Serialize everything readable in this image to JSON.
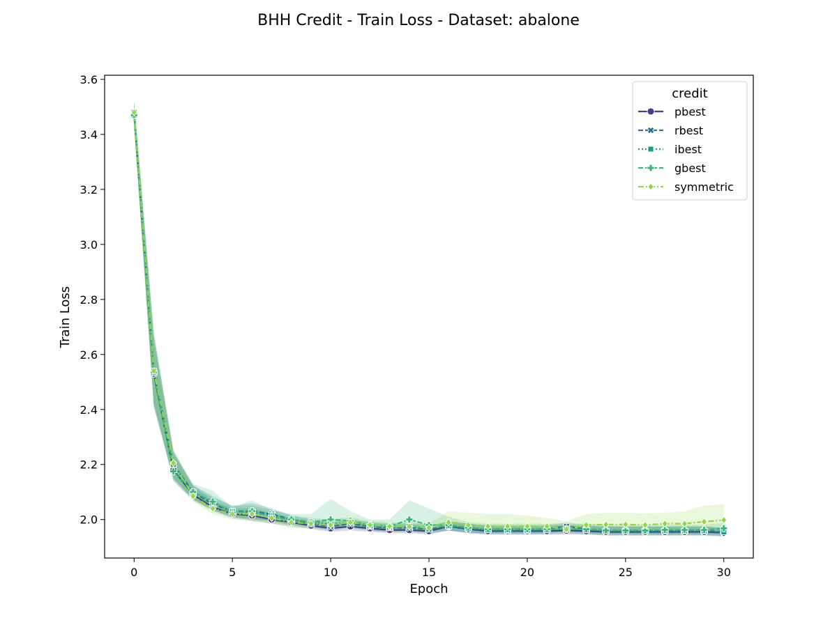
{
  "chart_data": {
    "type": "line",
    "title": "BHH Credit - Train Loss - Dataset: abalone",
    "xlabel": "Epoch",
    "ylabel": "Train Loss",
    "xlim": [
      -1.5,
      31.5
    ],
    "ylim": [
      1.86,
      3.615
    ],
    "xticks": [
      0,
      5,
      10,
      15,
      20,
      25,
      30
    ],
    "yticks": [
      2.0,
      2.2,
      2.4,
      2.6,
      2.8,
      3.0,
      3.2,
      3.4,
      3.6
    ],
    "ytick_labels": [
      "2.0",
      "2.2",
      "2.4",
      "2.6",
      "2.8",
      "3.0",
      "3.2",
      "3.4",
      "3.6"
    ],
    "grid": false,
    "legend": {
      "title": "credit",
      "placement": "top-right"
    },
    "x": [
      0,
      1,
      2,
      3,
      4,
      5,
      6,
      7,
      8,
      9,
      10,
      11,
      12,
      13,
      14,
      15,
      16,
      17,
      18,
      19,
      20,
      21,
      22,
      23,
      24,
      25,
      26,
      27,
      28,
      29,
      30
    ],
    "series": [
      {
        "name": "pbest",
        "color": "#433e85",
        "dash": "solid",
        "marker": "circle",
        "values": [
          3.47,
          2.53,
          2.18,
          2.09,
          2.045,
          2.02,
          2.015,
          2.0,
          1.99,
          1.978,
          1.968,
          1.975,
          1.968,
          1.962,
          1.962,
          1.958,
          1.975,
          1.965,
          1.958,
          1.958,
          1.958,
          1.958,
          1.96,
          1.958,
          1.955,
          1.955,
          1.955,
          1.955,
          1.955,
          1.955,
          1.952
        ],
        "band": [
          [
            3.51,
            3.43
          ],
          [
            2.65,
            2.42
          ],
          [
            2.24,
            2.14
          ],
          [
            2.12,
            2.07
          ],
          [
            2.07,
            2.03
          ],
          [
            2.04,
            2.005
          ],
          [
            2.04,
            1.995
          ],
          [
            2.025,
            1.985
          ],
          [
            2.005,
            1.975
          ],
          [
            1.995,
            1.965
          ],
          [
            1.985,
            1.955
          ],
          [
            1.99,
            1.96
          ],
          [
            1.985,
            1.955
          ],
          [
            1.98,
            1.95
          ],
          [
            1.98,
            1.95
          ],
          [
            1.975,
            1.945
          ],
          [
            1.995,
            1.96
          ],
          [
            1.985,
            1.95
          ],
          [
            1.975,
            1.945
          ],
          [
            1.975,
            1.945
          ],
          [
            1.975,
            1.945
          ],
          [
            1.975,
            1.945
          ],
          [
            1.98,
            1.945
          ],
          [
            1.975,
            1.945
          ],
          [
            1.975,
            1.942
          ],
          [
            1.975,
            1.942
          ],
          [
            1.975,
            1.942
          ],
          [
            1.975,
            1.942
          ],
          [
            1.975,
            1.942
          ],
          [
            1.975,
            1.942
          ],
          [
            1.97,
            1.938
          ]
        ]
      },
      {
        "name": "rbest",
        "color": "#2c728e",
        "dash": "dashed",
        "marker": "x",
        "values": [
          3.48,
          2.535,
          2.2,
          2.1,
          2.055,
          2.03,
          2.03,
          2.02,
          2.0,
          1.985,
          1.975,
          1.985,
          1.975,
          1.97,
          1.97,
          1.965,
          1.975,
          1.968,
          1.965,
          1.965,
          1.965,
          1.965,
          1.975,
          1.965,
          1.96,
          1.96,
          1.96,
          1.96,
          1.96,
          1.96,
          1.955
        ],
        "band": [
          [
            3.52,
            3.44
          ],
          [
            2.67,
            2.41
          ],
          [
            2.25,
            2.15
          ],
          [
            2.125,
            2.075
          ],
          [
            2.08,
            2.035
          ],
          [
            2.05,
            2.01
          ],
          [
            2.06,
            2.0
          ],
          [
            2.04,
            1.995
          ],
          [
            2.015,
            1.98
          ],
          [
            2.0,
            1.97
          ],
          [
            1.99,
            1.96
          ],
          [
            2.0,
            1.97
          ],
          [
            1.99,
            1.96
          ],
          [
            1.985,
            1.955
          ],
          [
            1.985,
            1.955
          ],
          [
            1.98,
            1.95
          ],
          [
            1.99,
            1.96
          ],
          [
            1.985,
            1.952
          ],
          [
            1.98,
            1.95
          ],
          [
            1.98,
            1.95
          ],
          [
            1.98,
            1.95
          ],
          [
            1.98,
            1.95
          ],
          [
            1.99,
            1.96
          ],
          [
            1.98,
            1.95
          ],
          [
            1.975,
            1.945
          ],
          [
            1.975,
            1.945
          ],
          [
            1.975,
            1.945
          ],
          [
            1.975,
            1.945
          ],
          [
            1.975,
            1.945
          ],
          [
            1.975,
            1.945
          ],
          [
            1.97,
            1.94
          ]
        ]
      },
      {
        "name": "ibest",
        "color": "#1e9b8a",
        "dash": "dotted",
        "marker": "square",
        "values": [
          3.48,
          2.54,
          2.2,
          2.1,
          2.06,
          2.03,
          2.025,
          2.015,
          2.0,
          1.99,
          1.985,
          1.99,
          1.975,
          1.97,
          1.975,
          1.965,
          1.975,
          1.968,
          1.962,
          1.96,
          1.96,
          1.962,
          1.965,
          1.962,
          1.958,
          1.958,
          1.958,
          1.958,
          1.958,
          1.958,
          1.955
        ],
        "band": [
          [
            3.52,
            3.44
          ],
          [
            2.67,
            2.42
          ],
          [
            2.25,
            2.15
          ],
          [
            2.125,
            2.075
          ],
          [
            2.085,
            2.035
          ],
          [
            2.05,
            2.01
          ],
          [
            2.05,
            2.0
          ],
          [
            2.035,
            1.995
          ],
          [
            2.015,
            1.985
          ],
          [
            2.005,
            1.975
          ],
          [
            2.0,
            1.97
          ],
          [
            2.005,
            1.975
          ],
          [
            1.99,
            1.96
          ],
          [
            1.985,
            1.955
          ],
          [
            1.99,
            1.96
          ],
          [
            1.98,
            1.95
          ],
          [
            1.99,
            1.96
          ],
          [
            1.985,
            1.952
          ],
          [
            1.978,
            1.946
          ],
          [
            1.975,
            1.945
          ],
          [
            1.975,
            1.945
          ],
          [
            1.978,
            1.946
          ],
          [
            1.98,
            1.95
          ],
          [
            1.978,
            1.946
          ],
          [
            1.974,
            1.942
          ],
          [
            1.974,
            1.942
          ],
          [
            1.974,
            1.942
          ],
          [
            1.974,
            1.942
          ],
          [
            1.974,
            1.942
          ],
          [
            1.974,
            1.942
          ],
          [
            1.97,
            1.94
          ]
        ]
      },
      {
        "name": "gbest",
        "color": "#35b779",
        "dash": "dashed",
        "marker": "plus",
        "values": [
          3.47,
          2.535,
          2.175,
          2.1,
          2.065,
          2.025,
          2.03,
          2.01,
          2.0,
          1.99,
          2.0,
          1.995,
          1.98,
          1.975,
          2.0,
          1.98,
          1.98,
          1.97,
          1.965,
          1.965,
          1.965,
          1.965,
          1.965,
          1.965,
          1.96,
          1.96,
          1.96,
          1.962,
          1.962,
          1.962,
          1.968
        ],
        "band": [
          [
            3.53,
            3.42
          ],
          [
            2.69,
            2.41
          ],
          [
            2.24,
            2.14
          ],
          [
            2.13,
            2.07
          ],
          [
            2.105,
            2.035
          ],
          [
            2.045,
            2.005
          ],
          [
            2.07,
            2.005
          ],
          [
            2.035,
            1.99
          ],
          [
            2.02,
            1.98
          ],
          [
            2.02,
            1.97
          ],
          [
            2.075,
            1.975
          ],
          [
            2.03,
            1.97
          ],
          [
            2.0,
            1.96
          ],
          [
            2.0,
            1.955
          ],
          [
            2.07,
            1.96
          ],
          [
            2.04,
            1.96
          ],
          [
            2.01,
            1.96
          ],
          [
            1.99,
            1.95
          ],
          [
            1.985,
            1.95
          ],
          [
            1.985,
            1.95
          ],
          [
            1.985,
            1.95
          ],
          [
            1.985,
            1.95
          ],
          [
            1.985,
            1.95
          ],
          [
            1.985,
            1.95
          ],
          [
            1.98,
            1.945
          ],
          [
            1.98,
            1.945
          ],
          [
            1.98,
            1.945
          ],
          [
            1.982,
            1.945
          ],
          [
            1.982,
            1.945
          ],
          [
            1.982,
            1.945
          ],
          [
            1.988,
            1.948
          ]
        ]
      },
      {
        "name": "symmetric",
        "color": "#8fd744",
        "dash": "dashdot",
        "marker": "diamond",
        "values": [
          3.48,
          2.54,
          2.205,
          2.085,
          2.04,
          2.02,
          2.02,
          2.005,
          1.99,
          1.985,
          1.98,
          1.99,
          1.98,
          1.975,
          1.975,
          1.97,
          1.99,
          1.98,
          1.975,
          1.975,
          1.975,
          1.975,
          1.965,
          1.98,
          1.982,
          1.982,
          1.98,
          1.985,
          1.985,
          1.992,
          1.998
        ],
        "band": [
          [
            3.52,
            3.44
          ],
          [
            2.67,
            2.42
          ],
          [
            2.26,
            2.16
          ],
          [
            2.11,
            2.065
          ],
          [
            2.065,
            2.02
          ],
          [
            2.04,
            2.0
          ],
          [
            2.045,
            1.995
          ],
          [
            2.03,
            1.985
          ],
          [
            2.01,
            1.97
          ],
          [
            2.0,
            1.968
          ],
          [
            2.0,
            1.962
          ],
          [
            2.01,
            1.97
          ],
          [
            1.995,
            1.962
          ],
          [
            1.99,
            1.958
          ],
          [
            1.99,
            1.958
          ],
          [
            1.985,
            1.952
          ],
          [
            2.03,
            1.97
          ],
          [
            2.025,
            1.96
          ],
          [
            2.02,
            1.955
          ],
          [
            2.02,
            1.955
          ],
          [
            2.015,
            1.955
          ],
          [
            2.005,
            1.955
          ],
          [
            1.995,
            1.95
          ],
          [
            2.02,
            1.955
          ],
          [
            2.025,
            1.958
          ],
          [
            2.025,
            1.958
          ],
          [
            2.022,
            1.956
          ],
          [
            2.025,
            1.96
          ],
          [
            2.03,
            1.96
          ],
          [
            2.05,
            1.962
          ],
          [
            2.055,
            1.965
          ]
        ]
      }
    ]
  }
}
